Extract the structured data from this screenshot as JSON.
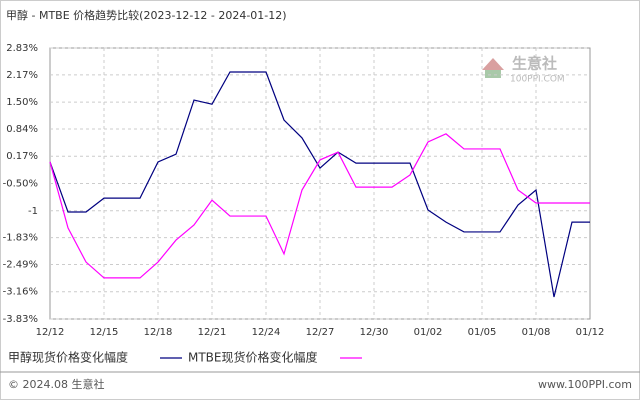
{
  "chart_data": {
    "type": "line",
    "title": "甲醇 - MTBE 价格趋势比较(2023-12-12 - 2024-01-12)",
    "watermark": [
      "生意社",
      "100PPI.COM"
    ],
    "footer_left": "© 2024.08 生意社",
    "footer_right": "www.100PPI.com",
    "categories": [
      "12/12",
      null,
      null,
      "12/15",
      null,
      null,
      "12/18",
      null,
      null,
      "12/21",
      null,
      null,
      "12/24",
      null,
      null,
      "12/27",
      null,
      null,
      "12/30",
      null,
      null,
      "01/02",
      null,
      null,
      "01/05",
      null,
      null,
      "01/08",
      null,
      null,
      "01/12"
    ],
    "series": [
      {
        "name": "甲醇现货价格变化幅度",
        "color": "#000080",
        "values": [
          0.03,
          -1.2,
          -1.2,
          -0.86,
          -0.86,
          -0.86,
          0.03,
          0.22,
          1.55,
          1.45,
          2.24,
          2.24,
          2.24,
          1.06,
          0.62,
          -0.12,
          0.27,
          0.0,
          0.0,
          0.0,
          0.0,
          -1.15,
          -1.45,
          -1.69,
          -1.69,
          -1.69,
          -1.03,
          -0.66,
          -3.29,
          -1.45,
          -1.45
        ]
      },
      {
        "name": "MTBE现货价格变化幅度",
        "color": "#ff00ff",
        "values": [
          0.03,
          -1.59,
          -2.43,
          -2.82,
          -2.82,
          -2.82,
          -2.43,
          -1.89,
          -1.52,
          -0.91,
          -1.3,
          -1.3,
          -1.3,
          -2.23,
          -0.66,
          0.08,
          0.27,
          -0.59,
          -0.59,
          -0.59,
          -0.29,
          0.52,
          0.72,
          0.35,
          0.35,
          0.35,
          -0.66,
          -0.98,
          -0.98,
          -0.98,
          -0.98
        ]
      }
    ],
    "ylim": [
      -3.83,
      2.83
    ],
    "yticks": [
      {
        "value": 2.83,
        "label": "2.83%"
      },
      {
        "value": 2.17,
        "label": "2.17%"
      },
      {
        "value": 1.5,
        "label": "1.50%"
      },
      {
        "value": 0.84,
        "label": "0.84%"
      },
      {
        "value": 0.17,
        "label": "0.17%"
      },
      {
        "value": -0.5,
        "label": "-0.50%"
      },
      {
        "value": -1.17,
        "label": "-1"
      },
      {
        "value": -1.83,
        "label": "-1.83%"
      },
      {
        "value": -2.49,
        "label": "-2.49%"
      },
      {
        "value": -3.16,
        "label": "-3.16%"
      },
      {
        "value": -3.83,
        "label": "-3.83%"
      }
    ],
    "grid": true
  }
}
